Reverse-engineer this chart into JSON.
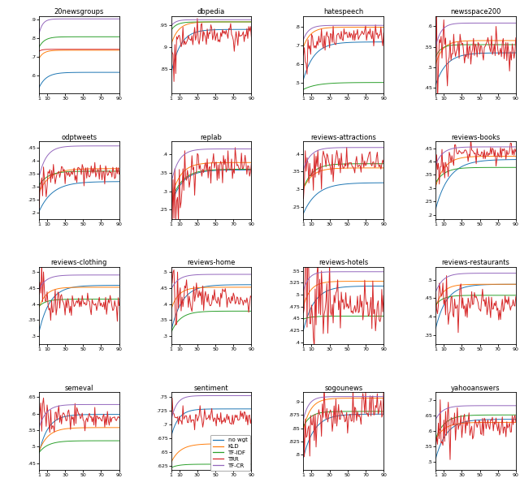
{
  "datasets": [
    {
      "name": "20newsgroups",
      "ylim": [
        0.5,
        0.92
      ],
      "yticks": [
        0.6,
        0.7,
        0.8,
        0.9
      ],
      "curves": {
        "no_wgt": {
          "v0": 0.52,
          "vf": 0.615,
          "sat": 8,
          "noisy": false,
          "noise": 0.0
        },
        "KLD": {
          "v0": 0.68,
          "vf": 0.735,
          "sat": 5,
          "noisy": false,
          "noise": 0.0
        },
        "TF_IDF": {
          "v0": 0.74,
          "vf": 0.808,
          "sat": 6,
          "noisy": false,
          "noise": 0.0
        },
        "TRR": {
          "v0": 0.725,
          "vf": 0.74,
          "sat": 3,
          "noisy": false,
          "noise": 0.003
        },
        "TF_CR": {
          "v0": 0.8,
          "vf": 0.905,
          "sat": 4,
          "noisy": false,
          "noise": 0.0
        }
      }
    },
    {
      "name": "dbpedia",
      "ylim": [
        0.795,
        0.97
      ],
      "yticks": [
        0.85,
        0.9,
        0.95
      ],
      "curves": {
        "no_wgt": {
          "v0": 0.83,
          "vf": 0.94,
          "sat": 10,
          "noisy": false,
          "noise": 0.0
        },
        "KLD": {
          "v0": 0.9,
          "vf": 0.957,
          "sat": 8,
          "noisy": false,
          "noise": 0.0
        },
        "TF_IDF": {
          "v0": 0.935,
          "vf": 0.957,
          "sat": 6,
          "noisy": false,
          "noise": 0.0
        },
        "TRR": {
          "v0": 0.87,
          "vf": 0.93,
          "sat": 10,
          "noisy": true,
          "noise": 0.01
        },
        "TF_CR": {
          "v0": 0.945,
          "vf": 0.962,
          "sat": 5,
          "noisy": false,
          "noise": 0.0
        }
      }
    },
    {
      "name": "hatespeech",
      "ylim": [
        0.44,
        0.86
      ],
      "yticks": [
        0.5,
        0.6,
        0.7,
        0.8
      ],
      "curves": {
        "no_wgt": {
          "v0": 0.5,
          "vf": 0.72,
          "sat": 12,
          "noisy": false,
          "noise": 0.0
        },
        "KLD": {
          "v0": 0.68,
          "vf": 0.8,
          "sat": 8,
          "noisy": false,
          "noise": 0.0
        },
        "TF_IDF": {
          "v0": 0.46,
          "vf": 0.5,
          "sat": 15,
          "noisy": false,
          "noise": 0.0
        },
        "TRR": {
          "v0": 0.62,
          "vf": 0.76,
          "sat": 12,
          "noisy": true,
          "noise": 0.022
        },
        "TF_CR": {
          "v0": 0.72,
          "vf": 0.81,
          "sat": 6,
          "noisy": false,
          "noise": 0.0
        }
      }
    },
    {
      "name": "newsspace200",
      "ylim": [
        0.435,
        0.625
      ],
      "yticks": [
        0.45,
        0.5,
        0.55,
        0.6
      ],
      "curves": {
        "no_wgt": {
          "v0": 0.45,
          "vf": 0.535,
          "sat": 12,
          "noisy": false,
          "noise": 0.0
        },
        "KLD": {
          "v0": 0.5,
          "vf": 0.565,
          "sat": 8,
          "noisy": false,
          "noise": 0.0
        },
        "TF_IDF": {
          "v0": 0.52,
          "vf": 0.555,
          "sat": 6,
          "noisy": false,
          "noise": 0.0
        },
        "TRR": {
          "v0": 0.49,
          "vf": 0.545,
          "sat": 15,
          "noisy": true,
          "noise": 0.018
        },
        "TF_CR": {
          "v0": 0.54,
          "vf": 0.608,
          "sat": 6,
          "noisy": false,
          "noise": 0.0
        }
      }
    },
    {
      "name": "odptweets",
      "ylim": [
        0.175,
        0.475
      ],
      "yticks": [
        0.2,
        0.25,
        0.3,
        0.35,
        0.4,
        0.45
      ],
      "curves": {
        "no_wgt": {
          "v0": 0.195,
          "vf": 0.32,
          "sat": 15,
          "noisy": false,
          "noise": 0.0
        },
        "KLD": {
          "v0": 0.27,
          "vf": 0.37,
          "sat": 12,
          "noisy": false,
          "noise": 0.0
        },
        "TF_IDF": {
          "v0": 0.3,
          "vf": 0.36,
          "sat": 10,
          "noisy": false,
          "noise": 0.0
        },
        "TRR": {
          "v0": 0.3,
          "vf": 0.358,
          "sat": 15,
          "noisy": true,
          "noise": 0.018
        },
        "TF_CR": {
          "v0": 0.32,
          "vf": 0.458,
          "sat": 8,
          "noisy": false,
          "noise": 0.0
        }
      }
    },
    {
      "name": "replab",
      "ylim": [
        0.225,
        0.435
      ],
      "yticks": [
        0.25,
        0.3,
        0.35,
        0.4
      ],
      "curves": {
        "no_wgt": {
          "v0": 0.255,
          "vf": 0.358,
          "sat": 12,
          "noisy": false,
          "noise": 0.0
        },
        "KLD": {
          "v0": 0.27,
          "vf": 0.378,
          "sat": 10,
          "noisy": false,
          "noise": 0.0
        },
        "TF_IDF": {
          "v0": 0.265,
          "vf": 0.36,
          "sat": 12,
          "noisy": false,
          "noise": 0.0
        },
        "TRR": {
          "v0": 0.275,
          "vf": 0.368,
          "sat": 15,
          "noisy": true,
          "noise": 0.02
        },
        "TF_CR": {
          "v0": 0.31,
          "vf": 0.415,
          "sat": 8,
          "noisy": false,
          "noise": 0.0
        }
      }
    },
    {
      "name": "reviews-attractions",
      "ylim": [
        0.215,
        0.435
      ],
      "yticks": [
        0.25,
        0.3,
        0.35,
        0.4
      ],
      "curves": {
        "no_wgt": {
          "v0": 0.225,
          "vf": 0.318,
          "sat": 15,
          "noisy": false,
          "noise": 0.0
        },
        "KLD": {
          "v0": 0.295,
          "vf": 0.36,
          "sat": 10,
          "noisy": false,
          "noise": 0.0
        },
        "TF_IDF": {
          "v0": 0.295,
          "vf": 0.372,
          "sat": 10,
          "noisy": false,
          "noise": 0.0
        },
        "TRR": {
          "v0": 0.33,
          "vf": 0.375,
          "sat": 15,
          "noisy": true,
          "noise": 0.018
        },
        "TF_CR": {
          "v0": 0.348,
          "vf": 0.418,
          "sat": 8,
          "noisy": false,
          "noise": 0.0
        }
      }
    },
    {
      "name": "reviews-books",
      "ylim": [
        0.185,
        0.475
      ],
      "yticks": [
        0.2,
        0.25,
        0.3,
        0.35,
        0.4,
        0.45
      ],
      "curves": {
        "no_wgt": {
          "v0": 0.21,
          "vf": 0.408,
          "sat": 15,
          "noisy": false,
          "noise": 0.0
        },
        "KLD": {
          "v0": 0.295,
          "vf": 0.42,
          "sat": 10,
          "noisy": false,
          "noise": 0.0
        },
        "TF_IDF": {
          "v0": 0.315,
          "vf": 0.378,
          "sat": 10,
          "noisy": false,
          "noise": 0.0
        },
        "TRR": {
          "v0": 0.35,
          "vf": 0.432,
          "sat": 12,
          "noisy": true,
          "noise": 0.014
        },
        "TF_CR": {
          "v0": 0.38,
          "vf": 0.455,
          "sat": 8,
          "noisy": false,
          "noise": 0.0
        }
      }
    },
    {
      "name": "reviews-clothing",
      "ylim": [
        0.275,
        0.515
      ],
      "yticks": [
        0.3,
        0.35,
        0.4,
        0.45,
        0.5
      ],
      "curves": {
        "no_wgt": {
          "v0": 0.3,
          "vf": 0.458,
          "sat": 12,
          "noisy": false,
          "noise": 0.0
        },
        "KLD": {
          "v0": 0.38,
          "vf": 0.452,
          "sat": 8,
          "noisy": false,
          "noise": 0.0
        },
        "TF_IDF": {
          "v0": 0.39,
          "vf": 0.415,
          "sat": 8,
          "noisy": false,
          "noise": 0.0
        },
        "TRR": {
          "v0": 0.43,
          "vf": 0.4,
          "sat": 5,
          "noisy": true,
          "noise": 0.016,
          "down": true
        },
        "TF_CR": {
          "v0": 0.44,
          "vf": 0.49,
          "sat": 8,
          "noisy": false,
          "noise": 0.0
        }
      }
    },
    {
      "name": "reviews-home",
      "ylim": [
        0.275,
        0.515
      ],
      "yticks": [
        0.3,
        0.35,
        0.4,
        0.45,
        0.5
      ],
      "curves": {
        "no_wgt": {
          "v0": 0.305,
          "vf": 0.46,
          "sat": 12,
          "noisy": false,
          "noise": 0.0
        },
        "KLD": {
          "v0": 0.375,
          "vf": 0.452,
          "sat": 8,
          "noisy": false,
          "noise": 0.0
        },
        "TF_IDF": {
          "v0": 0.305,
          "vf": 0.378,
          "sat": 10,
          "noisy": false,
          "noise": 0.0
        },
        "TRR": {
          "v0": 0.465,
          "vf": 0.415,
          "sat": 5,
          "noisy": true,
          "noise": 0.018,
          "down": true
        },
        "TF_CR": {
          "v0": 0.44,
          "vf": 0.492,
          "sat": 8,
          "noisy": false,
          "noise": 0.0
        }
      }
    },
    {
      "name": "reviews-hotels",
      "ylim": [
        0.396,
        0.558
      ],
      "yticks": [
        0.4,
        0.425,
        0.45,
        0.475,
        0.5,
        0.525,
        0.55
      ],
      "curves": {
        "no_wgt": {
          "v0": 0.418,
          "vf": 0.518,
          "sat": 12,
          "noisy": false,
          "noise": 0.0
        },
        "KLD": {
          "v0": 0.47,
          "vf": 0.528,
          "sat": 8,
          "noisy": false,
          "noise": 0.0
        },
        "TF_IDF": {
          "v0": 0.448,
          "vf": 0.455,
          "sat": 8,
          "noisy": false,
          "noise": 0.0
        },
        "TRR": {
          "v0": 0.505,
          "vf": 0.478,
          "sat": 6,
          "noisy": true,
          "noise": 0.022,
          "down": true
        },
        "TF_CR": {
          "v0": 0.502,
          "vf": 0.548,
          "sat": 6,
          "noisy": false,
          "noise": 0.0
        }
      }
    },
    {
      "name": "reviews-restaurants",
      "ylim": [
        0.325,
        0.535
      ],
      "yticks": [
        0.35,
        0.4,
        0.45,
        0.5
      ],
      "curves": {
        "no_wgt": {
          "v0": 0.358,
          "vf": 0.488,
          "sat": 12,
          "noisy": false,
          "noise": 0.0
        },
        "KLD": {
          "v0": 0.418,
          "vf": 0.488,
          "sat": 8,
          "noisy": false,
          "noise": 0.0
        },
        "TF_IDF": {
          "v0": 0.428,
          "vf": 0.458,
          "sat": 8,
          "noisy": false,
          "noise": 0.0
        },
        "TRR": {
          "v0": 0.475,
          "vf": 0.438,
          "sat": 5,
          "noisy": true,
          "noise": 0.018,
          "down": true
        },
        "TF_CR": {
          "v0": 0.46,
          "vf": 0.518,
          "sat": 8,
          "noisy": false,
          "noise": 0.0
        }
      }
    },
    {
      "name": "semeval",
      "ylim": [
        0.43,
        0.665
      ],
      "yticks": [
        0.45,
        0.5,
        0.55,
        0.6,
        0.65
      ],
      "curves": {
        "no_wgt": {
          "v0": 0.468,
          "vf": 0.598,
          "sat": 10,
          "noisy": false,
          "noise": 0.0
        },
        "KLD": {
          "v0": 0.478,
          "vf": 0.558,
          "sat": 10,
          "noisy": false,
          "noise": 0.0
        },
        "TF_IDF": {
          "v0": 0.478,
          "vf": 0.518,
          "sat": 10,
          "noisy": false,
          "noise": 0.0
        },
        "TRR": {
          "v0": 0.605,
          "vf": 0.59,
          "sat": 5,
          "noisy": true,
          "noise": 0.014
        },
        "TF_CR": {
          "v0": 0.548,
          "vf": 0.628,
          "sat": 8,
          "noisy": false,
          "noise": 0.0
        }
      }
    },
    {
      "name": "sentiment",
      "ylim": [
        0.618,
        0.758
      ],
      "yticks": [
        0.625,
        0.65,
        0.675,
        0.7,
        0.725,
        0.75
      ],
      "curves": {
        "no_wgt": {
          "v0": 0.672,
          "vf": 0.728,
          "sat": 8,
          "noisy": false,
          "noise": 0.0
        },
        "KLD": {
          "v0": 0.628,
          "vf": 0.665,
          "sat": 10,
          "noisy": false,
          "noise": 0.0
        },
        "TF_IDF": {
          "v0": 0.621,
          "vf": 0.628,
          "sat": 8,
          "noisy": false,
          "noise": 0.0
        },
        "TRR": {
          "v0": 0.701,
          "vf": 0.712,
          "sat": 8,
          "noisy": true,
          "noise": 0.007
        },
        "TF_CR": {
          "v0": 0.7,
          "vf": 0.752,
          "sat": 6,
          "noisy": false,
          "noise": 0.0
        }
      }
    },
    {
      "name": "sogounews",
      "ylim": [
        0.772,
        0.918
      ],
      "yticks": [
        0.8,
        0.825,
        0.85,
        0.875,
        0.9
      ],
      "curves": {
        "no_wgt": {
          "v0": 0.788,
          "vf": 0.877,
          "sat": 12,
          "noisy": false,
          "noise": 0.0
        },
        "KLD": {
          "v0": 0.84,
          "vf": 0.907,
          "sat": 8,
          "noisy": false,
          "noise": 0.0
        },
        "TF_IDF": {
          "v0": 0.85,
          "vf": 0.882,
          "sat": 8,
          "noisy": false,
          "noise": 0.0
        },
        "TRR": {
          "v0": 0.812,
          "vf": 0.884,
          "sat": 12,
          "noisy": true,
          "noise": 0.016
        },
        "TF_CR": {
          "v0": 0.86,
          "vf": 0.91,
          "sat": 6,
          "noisy": false,
          "noise": 0.0
        }
      }
    },
    {
      "name": "yahooanswers",
      "ylim": [
        0.475,
        0.725
      ],
      "yticks": [
        0.5,
        0.55,
        0.6,
        0.65,
        0.7
      ],
      "curves": {
        "no_wgt": {
          "v0": 0.5,
          "vf": 0.638,
          "sat": 12,
          "noisy": false,
          "noise": 0.0
        },
        "KLD": {
          "v0": 0.568,
          "vf": 0.628,
          "sat": 10,
          "noisy": false,
          "noise": 0.0
        },
        "TF_IDF": {
          "v0": 0.568,
          "vf": 0.652,
          "sat": 10,
          "noisy": false,
          "noise": 0.0
        },
        "TRR": {
          "v0": 0.605,
          "vf": 0.622,
          "sat": 8,
          "noisy": true,
          "noise": 0.02,
          "down": true
        },
        "TF_CR": {
          "v0": 0.632,
          "vf": 0.682,
          "sat": 8,
          "noisy": false,
          "noise": 0.0
        }
      }
    }
  ],
  "colors": {
    "no_wgt": "#1f77b4",
    "KLD": "#ff7f0e",
    "TF_IDF": "#2ca02c",
    "TRR": "#d62728",
    "TF_CR": "#9467bd"
  },
  "legend_labels": {
    "no_wgt": "no wgt",
    "KLD": "KLD",
    "TF_IDF": "TF-IDF",
    "TRR": "TRR",
    "TF_CR": "TF-CR"
  },
  "xtick_positions": [
    1,
    10,
    30,
    50,
    70,
    90
  ],
  "xtick_labels": [
    "1",
    "10",
    "30",
    "50",
    "70",
    "90"
  ]
}
